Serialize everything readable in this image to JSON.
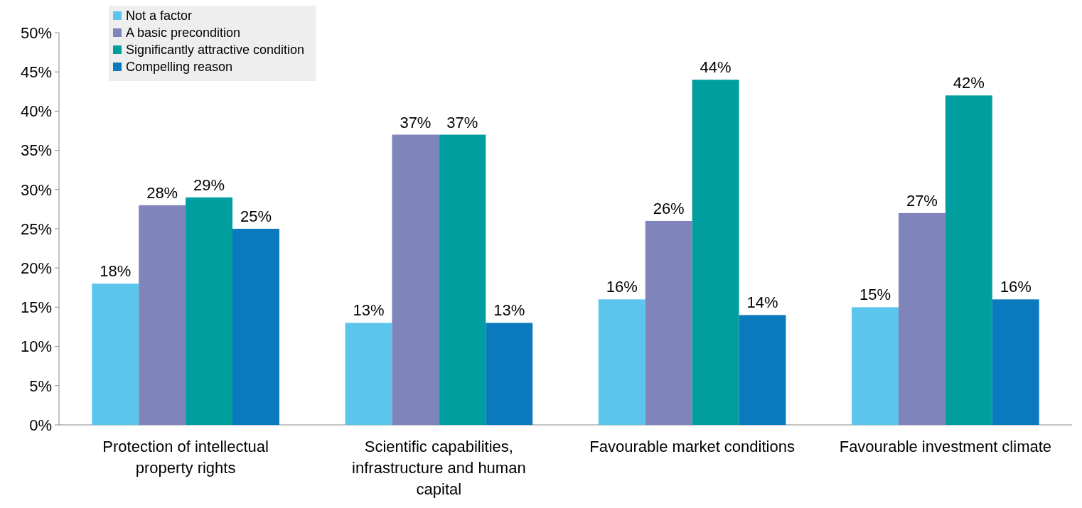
{
  "chart_data": {
    "type": "bar",
    "categories": [
      "Protection of intellectual property rights",
      "Scientific capabilities, infrastructure and human capital",
      "Favourable market conditions",
      "Favourable investment climate"
    ],
    "series": [
      {
        "name": "Not a factor",
        "color": "#5bc5ec",
        "values": [
          18,
          13,
          16,
          15
        ],
        "value_labels": [
          "18%",
          "13%",
          "16%",
          "15%"
        ]
      },
      {
        "name": "A basic precondition",
        "color": "#7f84bb",
        "values": [
          28,
          37,
          26,
          27
        ],
        "value_labels": [
          "28%",
          "37%",
          "26%",
          "27%"
        ]
      },
      {
        "name": "Significantly attractive condition",
        "color": "#009e9e",
        "values": [
          29,
          37,
          44,
          42
        ],
        "value_labels": [
          "29%",
          "37%",
          "44%",
          "42%"
        ]
      },
      {
        "name": "Compelling reason",
        "color": "#0a79bd",
        "values": [
          25,
          13,
          14,
          16
        ],
        "value_labels": [
          "25%",
          "13%",
          "14%",
          "16%"
        ]
      }
    ],
    "ylim": [
      0,
      50
    ],
    "yticks": [
      {
        "value": 0,
        "label": "0%"
      },
      {
        "value": 5,
        "label": "5%"
      },
      {
        "value": 10,
        "label": "10%"
      },
      {
        "value": 15,
        "label": "15%"
      },
      {
        "value": 20,
        "label": "20%"
      },
      {
        "value": 25,
        "label": "25%"
      },
      {
        "value": 30,
        "label": "30%"
      },
      {
        "value": 35,
        "label": "35%"
      },
      {
        "value": 40,
        "label": "40%"
      },
      {
        "value": 45,
        "label": "45%"
      },
      {
        "value": 50,
        "label": "50%"
      }
    ],
    "legend": "top left"
  }
}
